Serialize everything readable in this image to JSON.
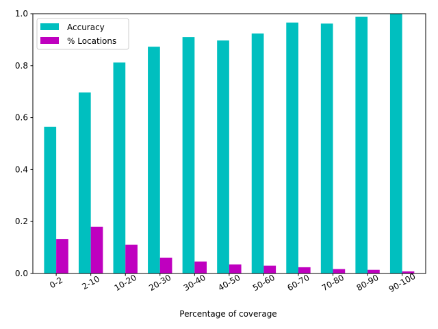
{
  "chart_data": {
    "type": "bar",
    "title": "",
    "xlabel": "Percentage of coverage",
    "ylabel": "",
    "ylim": [
      0,
      1.0
    ],
    "yticks": [
      "0.0",
      "0.2",
      "0.4",
      "0.6",
      "0.8",
      "1.0"
    ],
    "categories": [
      "0-2",
      "2-10",
      "10-20",
      "20-30",
      "30-40",
      "40-50",
      "50-60",
      "60-70",
      "70-80",
      "80-90",
      "90-100"
    ],
    "series": [
      {
        "name": "Accuracy",
        "color": "#00bfbf",
        "values": [
          0.565,
          0.697,
          0.812,
          0.873,
          0.91,
          0.897,
          0.924,
          0.966,
          0.962,
          0.988,
          1.0
        ]
      },
      {
        "name": "% Locations",
        "color": "#bf00bf",
        "values": [
          0.132,
          0.18,
          0.111,
          0.061,
          0.046,
          0.035,
          0.03,
          0.024,
          0.017,
          0.014,
          0.008
        ]
      }
    ],
    "grid": false,
    "legend_position": "upper-left"
  }
}
